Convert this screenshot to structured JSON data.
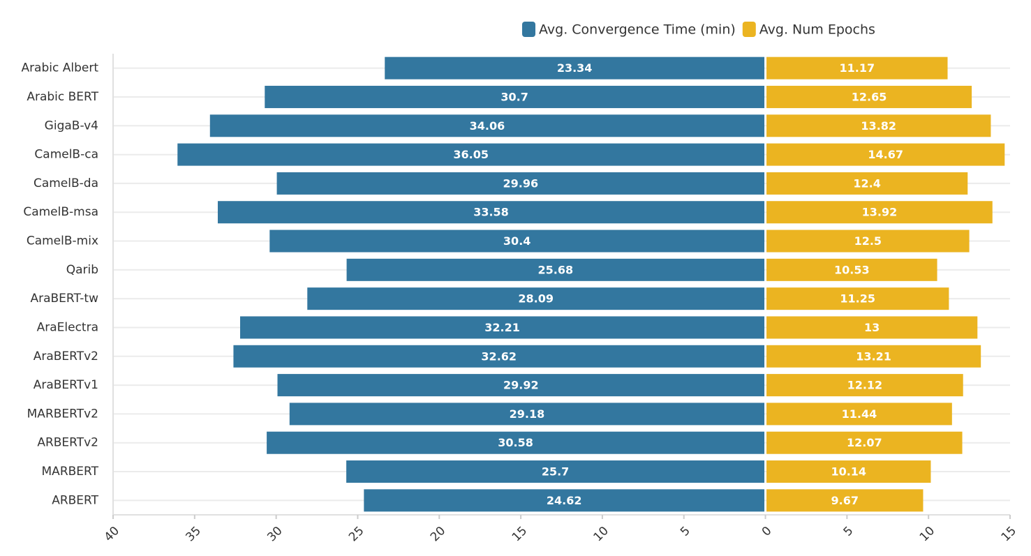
{
  "chart_data": {
    "type": "diverging-bar",
    "categories": [
      "Arabic Albert",
      "Arabic BERT",
      "GigaB-v4",
      "CamelB-ca",
      "CamelB-da",
      "CamelB-msa",
      "CamelB-mix",
      "Qarib",
      "AraBERT-tw",
      "AraElectra",
      "AraBERTv2",
      "AraBERTv1",
      "MARBERTv2",
      "ARBERTv2",
      "MARBERT",
      "ARBERT"
    ],
    "series": [
      {
        "name": "Avg. Convergence Time (min)",
        "color": "#33779f",
        "side": "left",
        "values": [
          23.34,
          30.7,
          34.06,
          36.05,
          29.96,
          33.58,
          30.4,
          25.68,
          28.09,
          32.21,
          32.62,
          29.92,
          29.18,
          30.58,
          25.7,
          24.62
        ]
      },
      {
        "name": "Avg. Num Epochs",
        "color": "#ebb421",
        "side": "right",
        "values": [
          11.17,
          12.65,
          13.82,
          14.67,
          12.4,
          13.92,
          12.5,
          10.53,
          11.25,
          13,
          13.21,
          12.12,
          11.44,
          12.07,
          10.14,
          9.67
        ]
      }
    ],
    "xlim": [
      -40,
      15
    ],
    "xticks": [
      {
        "value": -40,
        "label": "40"
      },
      {
        "value": -35,
        "label": "35"
      },
      {
        "value": -30,
        "label": "30"
      },
      {
        "value": -25,
        "label": "25"
      },
      {
        "value": -20,
        "label": "20"
      },
      {
        "value": -15,
        "label": "15"
      },
      {
        "value": -10,
        "label": "10"
      },
      {
        "value": -5,
        "label": "5"
      },
      0,
      5,
      10,
      15
    ],
    "grid": true,
    "legend": "top-right"
  }
}
